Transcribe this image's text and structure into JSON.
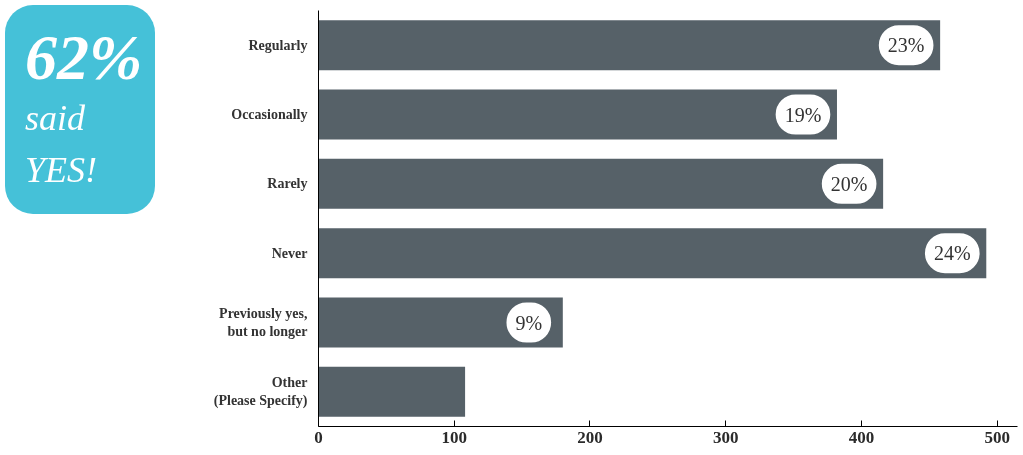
{
  "chart_data": {
    "type": "bar",
    "orientation": "horizontal",
    "categories": [
      "Regularly",
      "Occasionally",
      "Rarely",
      "Never",
      "Previously yes,\nbut no longer",
      "Other\n(Please Specify)"
    ],
    "values": [
      458,
      382,
      416,
      492,
      180,
      108
    ],
    "color": "#566168",
    "xlim": [
      0,
      515
    ],
    "xticks": [
      0,
      100,
      200,
      300,
      400,
      500
    ],
    "grid": false,
    "annotations": [
      "62%",
      "said YES!",
      {
        "text": "23%",
        "x": 458,
        "y": "Regularly"
      },
      {
        "text": "19%",
        "x": 382,
        "y": "Occasionally"
      },
      {
        "text": "20%",
        "x": 416,
        "y": "Rarely"
      },
      {
        "text": "24%",
        "x": 492,
        "y": "Never"
      },
      {
        "text": "9%",
        "x": 180,
        "y": "Previously yes,\nbut no longer"
      }
    ]
  }
}
